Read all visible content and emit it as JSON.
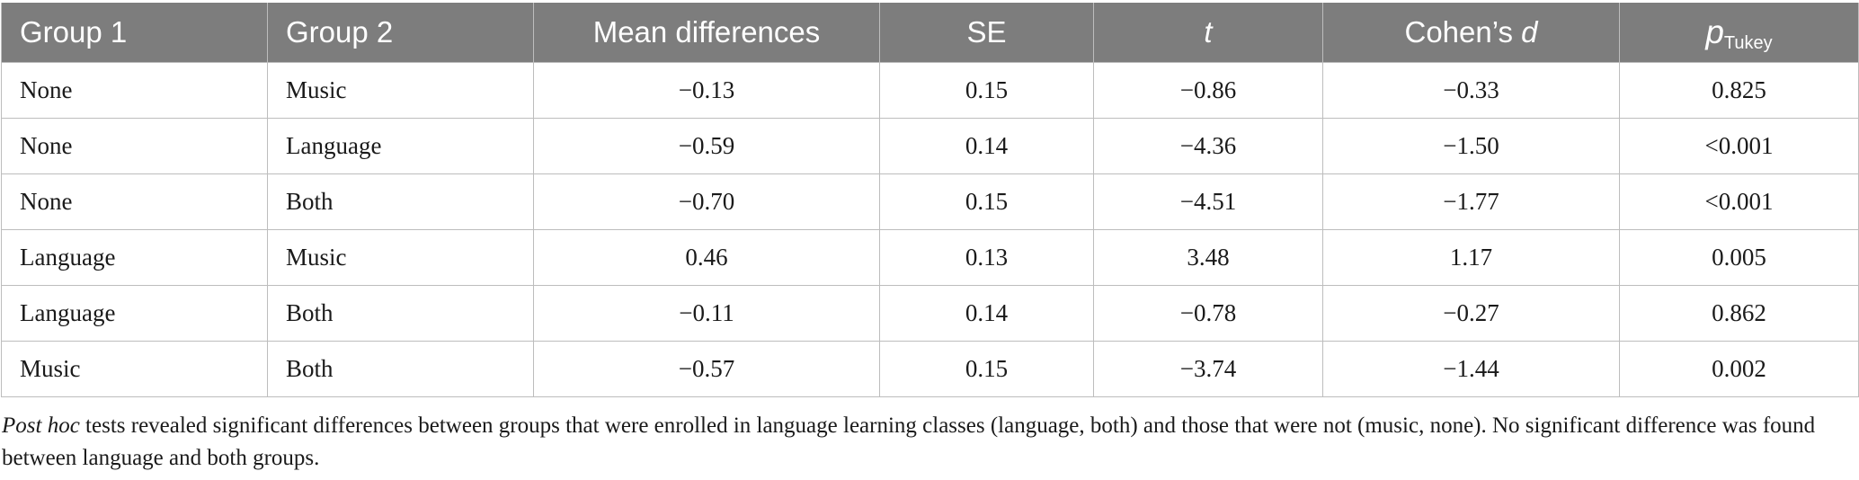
{
  "table": {
    "headers": {
      "group1": "Group 1",
      "group2": "Group 2",
      "mean_diff": "Mean differences",
      "se": "SE",
      "t": "t",
      "cohens_prefix": "Cohen’s ",
      "cohens_d": "d",
      "p_main": "p",
      "p_sub": "Tukey"
    },
    "rows": [
      {
        "group1": "None",
        "group2": "Music",
        "mean_diff": "−0.13",
        "se": "0.15",
        "t": "−0.86",
        "d": "−0.33",
        "p": "0.825"
      },
      {
        "group1": "None",
        "group2": "Language",
        "mean_diff": "−0.59",
        "se": "0.14",
        "t": "−4.36",
        "d": "−1.50",
        "p": "<0.001"
      },
      {
        "group1": "None",
        "group2": "Both",
        "mean_diff": "−0.70",
        "se": "0.15",
        "t": "−4.51",
        "d": "−1.77",
        "p": "<0.001"
      },
      {
        "group1": "Language",
        "group2": "Music",
        "mean_diff": "0.46",
        "se": "0.13",
        "t": "3.48",
        "d": "1.17",
        "p": "0.005"
      },
      {
        "group1": "Language",
        "group2": "Both",
        "mean_diff": "−0.11",
        "se": "0.14",
        "t": "−0.78",
        "d": "−0.27",
        "p": "0.862"
      },
      {
        "group1": "Music",
        "group2": "Both",
        "mean_diff": "−0.57",
        "se": "0.15",
        "t": "−3.74",
        "d": "−1.44",
        "p": "0.002"
      }
    ]
  },
  "note": {
    "lead": "Post hoc",
    "text": " tests revealed significant differences between groups that were enrolled in language learning classes (language, both) and those that were not (music, none). No significant difference was found between language and both groups."
  }
}
